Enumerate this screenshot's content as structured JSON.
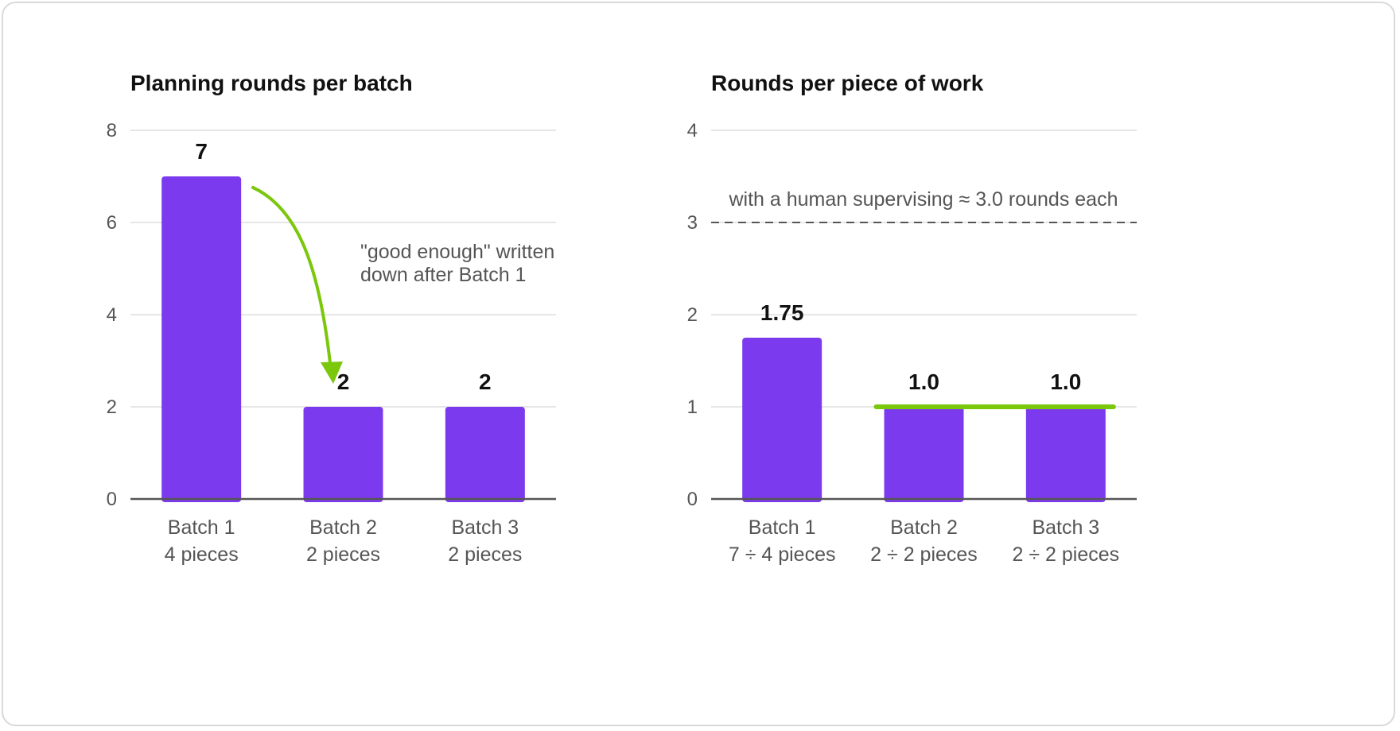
{
  "colors": {
    "bar": "#7b3aed",
    "accent": "#7ac70c",
    "grid": "#dddddd",
    "axis": "#555555",
    "reference": "#555555"
  },
  "chart_data": [
    {
      "type": "bar",
      "title": "Planning rounds per batch",
      "categories": [
        [
          "Batch 1",
          "4 pieces"
        ],
        [
          "Batch 2",
          "2 pieces"
        ],
        [
          "Batch 3",
          "2 pieces"
        ]
      ],
      "values": [
        7,
        2,
        2
      ],
      "value_labels": [
        "7",
        "2",
        "2"
      ],
      "ylim": [
        0,
        8
      ],
      "yticks": [
        0,
        2,
        4,
        6,
        8
      ],
      "grid": true,
      "annotation": {
        "lines": [
          "\"good enough\" written",
          "down after Batch 1"
        ],
        "arrow_from": "Batch 1",
        "arrow_to": "Batch 2"
      }
    },
    {
      "type": "bar",
      "title": "Rounds per piece of work",
      "categories": [
        [
          "Batch 1",
          "7 ÷ 4 pieces"
        ],
        [
          "Batch 2",
          "2 ÷ 2 pieces"
        ],
        [
          "Batch 3",
          "2 ÷ 2 pieces"
        ]
      ],
      "values": [
        1.75,
        1.0,
        1.0
      ],
      "value_labels": [
        "1.75",
        "1.0",
        "1.0"
      ],
      "ylim": [
        0,
        4
      ],
      "yticks": [
        0,
        1,
        2,
        3,
        4
      ],
      "grid": true,
      "reference_line": {
        "value": 3.0,
        "label": "with a human supervising ≈ 3.0 rounds each"
      },
      "highlight_line": {
        "value": 1.0,
        "from": "Batch 2",
        "to": "Batch 3"
      }
    }
  ]
}
